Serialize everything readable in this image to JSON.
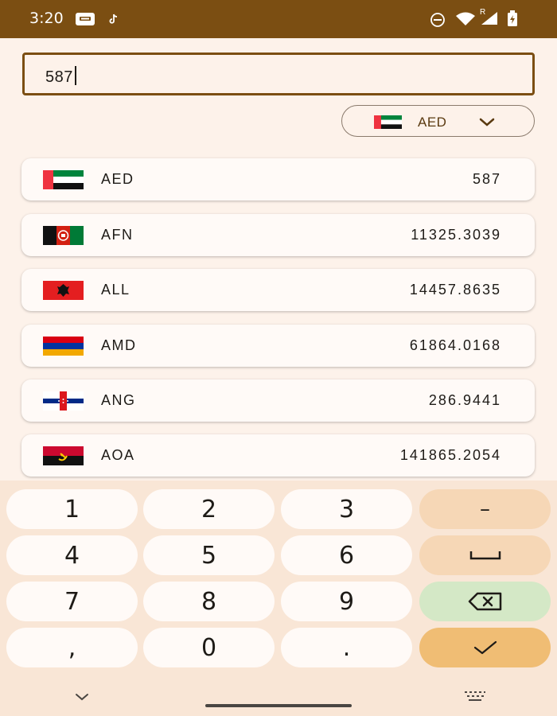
{
  "status_bar": {
    "time": "3:20",
    "icons": [
      "message-icon",
      "tiktok-icon",
      "dnd-icon",
      "wifi-icon",
      "roaming-signal-icon",
      "battery-charging-icon"
    ],
    "roaming": "R",
    "background": "#7b4e12"
  },
  "input": {
    "value": "587"
  },
  "select": {
    "code": "AED",
    "flag": "uae-flag-icon"
  },
  "currencies": [
    {
      "code": "AED",
      "value": "587",
      "flag": "uae-flag-icon"
    },
    {
      "code": "AFN",
      "value": "11325.3039",
      "flag": "afghanistan-flag-icon"
    },
    {
      "code": "ALL",
      "value": "14457.8635",
      "flag": "albania-flag-icon"
    },
    {
      "code": "AMD",
      "value": "61864.0168",
      "flag": "armenia-flag-icon"
    },
    {
      "code": "ANG",
      "value": "286.9441",
      "flag": "netherlands-antilles-flag-icon"
    },
    {
      "code": "AOA",
      "value": "141865.2054",
      "flag": "angola-flag-icon"
    }
  ],
  "keypad": {
    "rows": [
      [
        "1",
        "2",
        "3",
        "–"
      ],
      [
        "4",
        "5",
        "6",
        "␣"
      ],
      [
        "7",
        "8",
        "9",
        "⌫"
      ],
      [
        ",",
        "0",
        ".",
        "✓"
      ]
    ],
    "icons": {
      "space": "space-key-icon",
      "backspace": "backspace-icon",
      "done": "checkmark-icon"
    }
  },
  "nav": {
    "icons": [
      "hide-keyboard-chevron-icon",
      "keyboard-switch-icon"
    ]
  },
  "colors": {
    "brand": "#7b4e12",
    "background": "#fdf2ea",
    "card": "#fffaf7",
    "keypad_bg": "#f9e6d6",
    "key_accent": "#f6d7b6",
    "key_backspace": "#d4e8c6",
    "key_done": "#f0bd74"
  }
}
